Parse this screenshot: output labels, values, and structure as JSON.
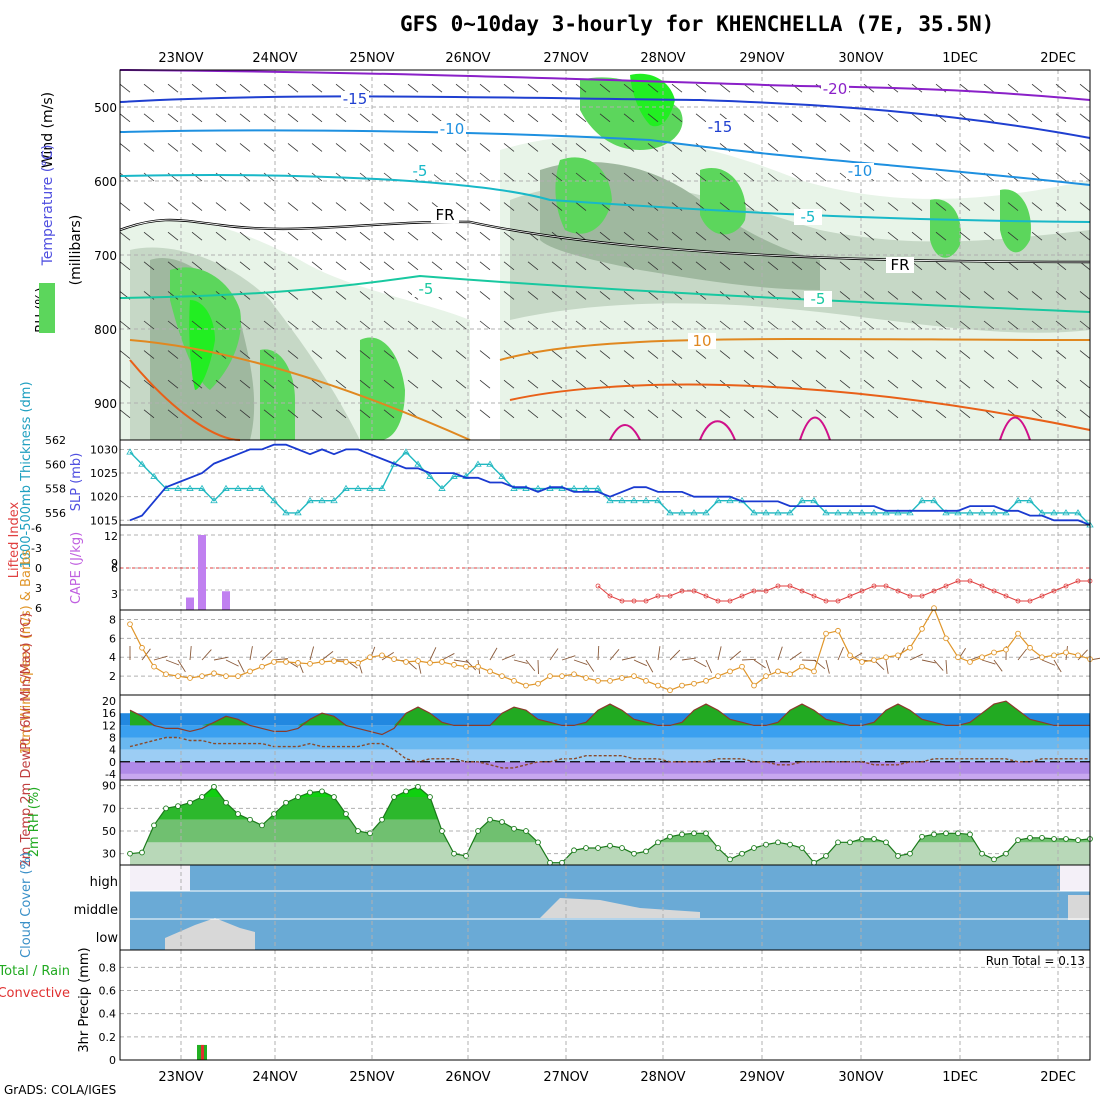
{
  "header": {
    "title": "GFS 0~10day 3-hourly for KHENCHELLA (7E, 35.5N)",
    "credit": "GrADS: COLA/IGES"
  },
  "colors": {
    "rh_light": "#e8f4e8",
    "rh_mid": "#c6d8c6",
    "rh_dark": "#9fb89f",
    "rh_green": "#5cd65c",
    "rh_bright": "#22ee22",
    "temp_purple": "#8a20c8",
    "temp_blue": "#1f3fd0",
    "temp_lblue": "#1e90e0",
    "temp_cyan": "#18b8c8",
    "temp_teal": "#18c8a0",
    "temp_orange": "#e08820",
    "temp_dorange": "#e86018",
    "temp_magenta": "#d0108a",
    "slp": "#1a3ad0",
    "thickness": "#20b8c0",
    "cape": "#c080f0",
    "lifted": "#e04040",
    "wind_speed": "#e0962a",
    "barb": "#8a5a3a",
    "cloud": "#6aaad6",
    "cloud_clear": "#d8d8d8",
    "precip_total": "#22b022",
    "precip_conv": "#e03030"
  },
  "date_labels": [
    "23NOV",
    "24NOV",
    "25NOV",
    "26NOV",
    "27NOV",
    "28NOV",
    "29NOV",
    "30NOV",
    "1DEC",
    "2DEC"
  ],
  "panels": {
    "upper": {
      "ylabel_wind": "Wind (m/s)",
      "ylabel_temp": "Temperature (°C)",
      "ylabel_rh": "RH (%)",
      "ylabel_units": "(millibars)",
      "yticks": [
        "500",
        "600",
        "700",
        "800",
        "900"
      ],
      "contour_labels": [
        {
          "text": "-15",
          "color": "#1f3fd0"
        },
        {
          "text": "-10",
          "color": "#1e90e0"
        },
        {
          "text": "-5",
          "color": "#18b8c8"
        },
        {
          "text": "-5",
          "color": "#18c8a0"
        },
        {
          "text": "-20",
          "color": "#8a20c8"
        },
        {
          "text": "-15",
          "color": "#1f3fd0"
        },
        {
          "text": "-10",
          "color": "#1e90e0"
        },
        {
          "text": "-5",
          "color": "#18b8c8"
        },
        {
          "text": "-5",
          "color": "#18c8a0"
        },
        {
          "text": "10",
          "color": "#e08820"
        },
        {
          "text": "FR",
          "color": "#000000"
        },
        {
          "text": "FR",
          "color": "#000000"
        }
      ]
    },
    "slp": {
      "ylabel_left": "1000-500mb Thickness (dm)",
      "ylabel_right": "SLP (mb)",
      "left_ticks": [
        "562",
        "560",
        "558",
        "556"
      ],
      "right_ticks": [
        "1030",
        "1025",
        "1020",
        "1015"
      ]
    },
    "cape": {
      "ylabel_left": "Lifted Index",
      "ylabel_right": "CAPE (J/kg)",
      "left_ticks": [
        "-6",
        "-3",
        "0",
        "3",
        "6"
      ],
      "right_ticks": [
        "12",
        "9",
        "6",
        "3"
      ]
    },
    "wind": {
      "ylabel": "10m Wind Speed (m/s) & Barbs",
      "ticks": [
        "8",
        "6",
        "4",
        "2"
      ]
    },
    "temp": {
      "ylabel": "2m Temp 2m DewPt (6hr Min/Max) (°C)",
      "ticks": [
        "20",
        "16",
        "12",
        "8",
        "4",
        "0",
        "-4"
      ]
    },
    "rh": {
      "ylabel": "2m RH (%)",
      "ticks": [
        "90",
        "70",
        "50",
        "30"
      ]
    },
    "cloud": {
      "ylabel": "Cloud Cover (%)",
      "levels": [
        "high",
        "middle",
        "low"
      ]
    },
    "precip": {
      "ylabel_a": "Total / Rain",
      "ylabel_b": "Convective",
      "ylabel_c": "3hr Precip (mm)",
      "ticks": [
        "0.8",
        "0.6",
        "0.4",
        "0.2",
        "0"
      ],
      "run_total": "Run Total = 0.13"
    }
  },
  "chart_data": [
    {
      "type": "line",
      "name": "SLP and thickness",
      "x_start": "22NOV 12Z",
      "step_hours": 3,
      "series": [
        {
          "name": "SLP (mb)",
          "values": [
            1015,
            1016,
            1019,
            1022,
            1023,
            1024,
            1025,
            1027,
            1028,
            1029,
            1030,
            1030,
            1031,
            1031,
            1030,
            1029,
            1030,
            1029,
            1030,
            1030,
            1029,
            1028,
            1027,
            1026,
            1026,
            1025,
            1025,
            1025,
            1024,
            1024,
            1023,
            1023,
            1022,
            1022,
            1021,
            1022,
            1022,
            1021,
            1021,
            1021,
            1020,
            1021,
            1022,
            1022,
            1021,
            1021,
            1021,
            1020,
            1020,
            1020,
            1020,
            1019,
            1019,
            1019,
            1019,
            1018,
            1018,
            1018,
            1018,
            1018,
            1018,
            1018,
            1018,
            1017,
            1017,
            1017,
            1017,
            1017,
            1017,
            1017,
            1018,
            1018,
            1018,
            1017,
            1017,
            1016,
            1016,
            1015,
            1015,
            1015,
            1014
          ]
        },
        {
          "name": "1000-500mb Thickness (dm)",
          "values": [
            561,
            560,
            559,
            558,
            558,
            558,
            558,
            557,
            558,
            558,
            558,
            558,
            557,
            556,
            556,
            557,
            557,
            557,
            558,
            558,
            558,
            558,
            560,
            561,
            560,
            559,
            558,
            559,
            559,
            560,
            560,
            559,
            558,
            558,
            558,
            558,
            558,
            558,
            558,
            558,
            557,
            557,
            557,
            557,
            557,
            556,
            556,
            556,
            556,
            557,
            557,
            557,
            556,
            556,
            556,
            556,
            557,
            557,
            556,
            556,
            556,
            556,
            556,
            556,
            556,
            556,
            557,
            557,
            556,
            556,
            556,
            556,
            556,
            556,
            557,
            557,
            556,
            556,
            556,
            556,
            555
          ]
        }
      ],
      "ylim_left": [
        555,
        562
      ],
      "ylim_right": [
        1014,
        1032
      ]
    },
    {
      "type": "bar",
      "name": "CAPE and Lifted Index",
      "series": [
        {
          "name": "CAPE (J/kg)",
          "x_index": [
            5,
            6,
            8
          ],
          "values": [
            2,
            12,
            3
          ]
        },
        {
          "name": "Lifted Index",
          "values_from_index": 39,
          "values": [
            4,
            2,
            1,
            1,
            1,
            2,
            2,
            3,
            3,
            2,
            1,
            1,
            2,
            3,
            3,
            4,
            4,
            3,
            2,
            1,
            1,
            2,
            3,
            4,
            4,
            3,
            2,
            2,
            3,
            4,
            5,
            5,
            4,
            3,
            2,
            1,
            1,
            2,
            3,
            4,
            5,
            5
          ]
        }
      ],
      "ylim": [
        0,
        12
      ]
    },
    {
      "type": "line",
      "name": "10m wind speed",
      "series": [
        {
          "name": "Wind Speed (m/s)",
          "values": [
            7.5,
            5,
            3,
            2.2,
            2,
            1.8,
            2,
            2.3,
            2,
            2,
            2.5,
            3,
            3.5,
            3.5,
            3.4,
            3.3,
            3.5,
            3.6,
            3.5,
            3.4,
            4,
            4.2,
            3.8,
            3.5,
            3.6,
            3.4,
            3.5,
            3.2,
            3,
            3,
            2.5,
            2,
            1.5,
            1,
            1.2,
            2,
            2,
            2.2,
            1.8,
            1.5,
            1.5,
            1.8,
            2,
            1.5,
            1,
            0.5,
            1,
            1.2,
            1.5,
            2,
            2.5,
            3,
            1,
            2,
            2.5,
            2.2,
            3,
            2.5,
            6.5,
            6.8,
            4.2,
            3.5,
            3.7,
            4,
            4.2,
            5,
            7,
            9.2,
            6,
            4,
            3.5,
            4,
            4.5,
            4.8,
            6.5,
            5,
            4,
            4.2,
            4.5,
            4.2,
            3.8
          ]
        }
      ],
      "ylim": [
        0,
        9
      ]
    },
    {
      "type": "area",
      "name": "2m temperature and dewpoint",
      "series": [
        {
          "name": "2m Temp (°C)",
          "values": [
            17,
            15,
            12,
            11,
            11,
            10,
            11,
            13,
            15,
            14,
            12,
            11,
            10,
            10,
            11,
            14,
            16,
            15,
            12,
            11,
            10,
            9,
            11,
            16,
            18,
            16,
            13,
            12,
            12,
            12,
            12,
            16,
            18,
            17,
            14,
            13,
            12,
            12,
            13,
            17,
            19,
            17,
            14,
            13,
            12,
            12,
            13,
            17,
            19,
            17,
            14,
            13,
            12,
            12,
            13,
            17,
            19,
            17,
            14,
            13,
            12,
            12,
            13,
            17,
            19,
            17,
            14,
            13,
            12,
            12,
            13,
            16,
            19,
            20,
            17,
            14,
            13,
            12,
            12,
            12,
            12
          ]
        },
        {
          "name": "2m DewPt (°C)",
          "values": [
            5,
            6,
            7,
            8,
            8,
            7,
            7,
            6,
            6,
            6,
            6,
            6,
            5,
            5,
            5,
            6,
            5,
            5,
            5,
            5,
            6,
            6,
            4,
            1,
            0,
            1,
            1,
            1,
            0,
            0,
            -1,
            -2,
            -2,
            -1,
            0,
            0,
            1,
            1,
            2,
            2,
            2,
            2,
            1,
            1,
            1,
            0,
            0,
            0,
            0,
            1,
            1,
            1,
            0,
            0,
            -1,
            -1,
            0,
            0,
            0,
            0,
            0,
            0,
            -1,
            -1,
            -1,
            0,
            0,
            1,
            1,
            1,
            1,
            1,
            1,
            1,
            0,
            0,
            1,
            1,
            1,
            1,
            1
          ]
        }
      ],
      "ylim": [
        -6,
        22
      ]
    },
    {
      "type": "area",
      "name": "2m RH",
      "series": [
        {
          "name": "2m RH (%)",
          "values": [
            30,
            31,
            55,
            70,
            72,
            75,
            80,
            89,
            75,
            65,
            60,
            55,
            65,
            75,
            80,
            84,
            85,
            80,
            65,
            50,
            48,
            60,
            80,
            85,
            89,
            80,
            50,
            30,
            28,
            50,
            60,
            58,
            52,
            50,
            40,
            22,
            22,
            33,
            35,
            35,
            37,
            35,
            30,
            32,
            40,
            45,
            47,
            48,
            48,
            35,
            25,
            30,
            35,
            38,
            40,
            38,
            35,
            22,
            28,
            40,
            40,
            43,
            43,
            40,
            28,
            30,
            45,
            47,
            48,
            48,
            47,
            30,
            25,
            30,
            42,
            44,
            44,
            43,
            43,
            42,
            43
          ]
        }
      ],
      "ylim": [
        20,
        95
      ]
    },
    {
      "type": "heatmap",
      "name": "Cloud Cover",
      "rows": [
        "high",
        "middle",
        "low"
      ],
      "units": "%"
    },
    {
      "type": "bar",
      "name": "3hr Precip",
      "series": [
        {
          "name": "Total / Rain",
          "x_index": [
            6
          ],
          "values": [
            0.13
          ]
        },
        {
          "name": "Convective",
          "x_index": [
            6
          ],
          "values": [
            0.13
          ]
        }
      ],
      "ylim": [
        0,
        0.95
      ]
    }
  ]
}
